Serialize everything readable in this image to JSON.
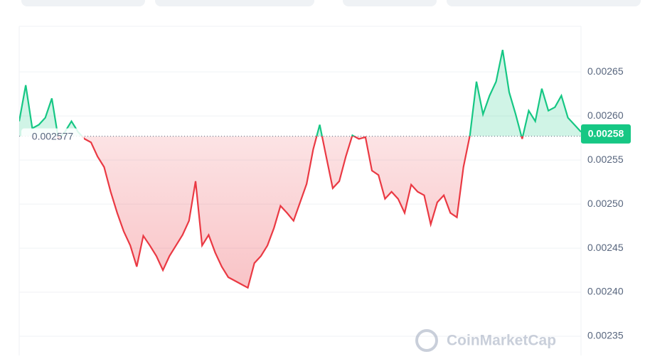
{
  "chart_data": {
    "type": "line",
    "values": [
      0.002594,
      0.002635,
      0.002586,
      0.00259,
      0.002598,
      0.00262,
      0.002574,
      0.002582,
      0.002594,
      0.002582,
      0.002574,
      0.00257,
      0.002554,
      0.002542,
      0.002514,
      0.00249,
      0.002469,
      0.002453,
      0.002429,
      0.002464,
      0.002453,
      0.002441,
      0.002425,
      0.002441,
      0.002453,
      0.002465,
      0.002481,
      0.002526,
      0.002453,
      0.002465,
      0.002445,
      0.002429,
      0.002417,
      0.002413,
      0.002409,
      0.002405,
      0.002433,
      0.002441,
      0.002453,
      0.002473,
      0.002498,
      0.00249,
      0.002481,
      0.002502,
      0.002523,
      0.002562,
      0.00259,
      0.002554,
      0.002518,
      0.002526,
      0.002554,
      0.002578,
      0.002574,
      0.002576,
      0.002538,
      0.002533,
      0.002506,
      0.002514,
      0.002506,
      0.00249,
      0.002522,
      0.002514,
      0.00251,
      0.002477,
      0.002502,
      0.00251,
      0.00249,
      0.002485,
      0.002542,
      0.002578,
      0.002639,
      0.002602,
      0.002623,
      0.002639,
      0.002675,
      0.002627,
      0.002602,
      0.002574,
      0.002606,
      0.002594,
      0.002631,
      0.002606,
      0.00261,
      0.002623,
      0.002598,
      0.00259,
      0.002582
    ],
    "up_color": "#16c784",
    "down_color": "#ea3943",
    "baseline": 0.002577,
    "current_price": 0.00258,
    "ylim": [
      0.00233,
      0.0027
    ],
    "yticks": [
      0.00235,
      {
        "value": 0.0024,
        "label": "0.00240"
      },
      0.00245,
      {
        "value": 0.0025,
        "label": "0.00250"
      },
      0.00255,
      {
        "value": 0.0026,
        "label": "0.00260"
      },
      0.00265
    ],
    "grid": true
  },
  "watermark": "CoinMarketCap"
}
